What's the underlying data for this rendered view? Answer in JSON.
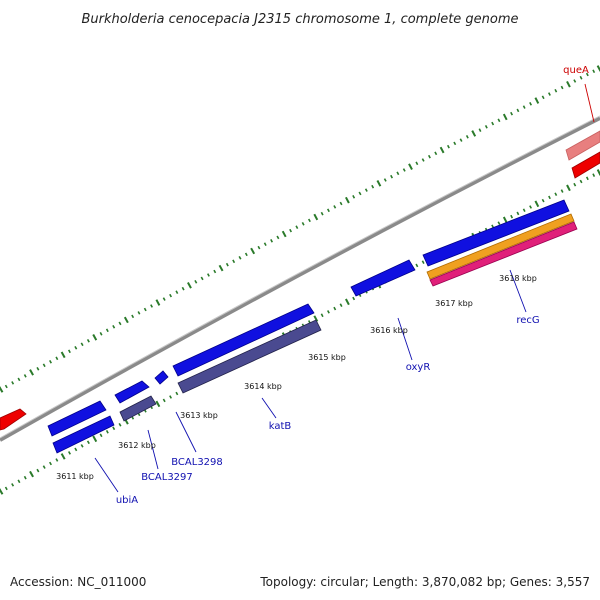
{
  "title": "Burkholderia cenocepacia J2315 chromosome 1, complete genome",
  "accession": "Accession: NC_011000",
  "stats": "Topology: circular; Length: 3,870,082 bp; Genes: 3,557",
  "ticks": [
    {
      "id": "3611",
      "label": "3611 kbp"
    },
    {
      "id": "3612",
      "label": "3612 kbp"
    },
    {
      "id": "3613",
      "label": "3613 kbp"
    },
    {
      "id": "3614",
      "label": "3614 kbp"
    },
    {
      "id": "3615",
      "label": "3615 kbp"
    },
    {
      "id": "3616",
      "label": "3616 kbp"
    },
    {
      "id": "3617",
      "label": "3617 kbp"
    },
    {
      "id": "3618",
      "label": "3618 kbp"
    }
  ],
  "genes": [
    {
      "id": "queA",
      "label": "queA",
      "strand": "forward"
    },
    {
      "id": "ubiA",
      "label": "ubiA",
      "strand": "reverse"
    },
    {
      "id": "BCAL3297",
      "label": "BCAL3297",
      "strand": "reverse"
    },
    {
      "id": "BCAL3298",
      "label": "BCAL3298",
      "strand": "reverse"
    },
    {
      "id": "katB",
      "label": "katB",
      "strand": "reverse"
    },
    {
      "id": "oxyR",
      "label": "oxyR",
      "strand": "reverse"
    },
    {
      "id": "recG",
      "label": "recG",
      "strand": "reverse"
    }
  ],
  "colors": {
    "backbone": "#8a8a8a",
    "cds": "#1010e0",
    "gene": "#4a4a90",
    "forward_cds": "#ee0000",
    "forward_gene": "#e87f7f",
    "orange_feature": "#f0a020",
    "pink_feature": "#e0207a",
    "ticks": "#2a7a2a",
    "label_blue": "#1010b0",
    "label_red": "#cc0000"
  }
}
